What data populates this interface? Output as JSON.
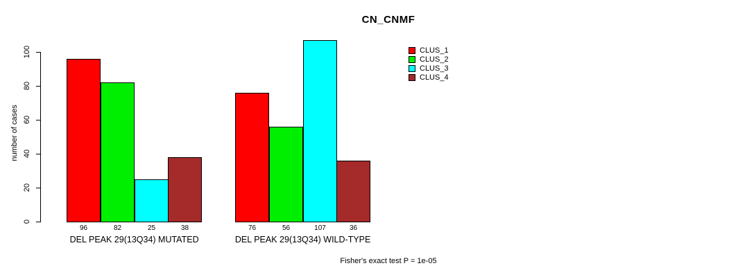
{
  "chart_data": {
    "type": "bar",
    "title": "CN_CNMF",
    "ylabel": "number of cases",
    "xlabel": "",
    "ylim": [
      0,
      110
    ],
    "yticks": [
      0,
      20,
      40,
      60,
      80,
      100
    ],
    "grid": false,
    "legend_position": "top-right",
    "categories": [
      "DEL PEAK 29(13Q34) MUTATED",
      "DEL PEAK 29(13Q34) WILD-TYPE"
    ],
    "series": [
      {
        "name": "CLUS_1",
        "color": "#FF0000",
        "values": [
          96,
          76
        ]
      },
      {
        "name": "CLUS_2",
        "color": "#00EE00",
        "values": [
          82,
          56
        ]
      },
      {
        "name": "CLUS_3",
        "color": "#00FFFF",
        "values": [
          25,
          107
        ]
      },
      {
        "name": "CLUS_4",
        "color": "#A52A2A",
        "values": [
          38,
          36
        ]
      }
    ],
    "bar_value_labels": [
      [
        96,
        82,
        25,
        38
      ],
      [
        76,
        56,
        107,
        36
      ]
    ],
    "annotation": "Fisher's exact test P = 1e-05"
  }
}
